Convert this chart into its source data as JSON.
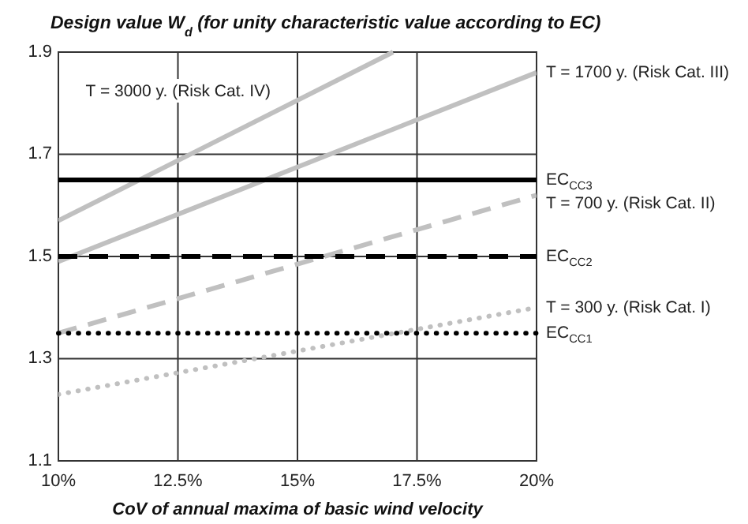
{
  "chart_data": {
    "type": "line",
    "title": "Design value W$_{d}$ (for unity characteristic value according to EC)",
    "xlabel": "CoV of annual maxima of basic wind velocity",
    "xlim": [
      10,
      20
    ],
    "xticks": [
      {
        "value": 10,
        "label": "10%"
      },
      {
        "value": 12.5,
        "label": "12.5%"
      },
      {
        "value": 15,
        "label": "15%"
      },
      {
        "value": 17.5,
        "label": "17.5%"
      },
      {
        "value": 20,
        "label": "20%"
      }
    ],
    "ylim": [
      1.1,
      1.9
    ],
    "yticks": [
      1.1,
      1.3,
      1.5,
      1.7,
      1.9
    ],
    "grid": true,
    "series": [
      {
        "name": "T = 3000 y. (Risk Cat. IV)",
        "color": "#c0c0c0",
        "line_style": "solid",
        "x": [
          10,
          17
        ],
        "values": [
          1.57,
          1.9
        ]
      },
      {
        "name": "T = 1700 y. (Risk Cat. III)",
        "color": "#c0c0c0",
        "line_style": "solid",
        "x": [
          10,
          20
        ],
        "values": [
          1.49,
          1.86
        ]
      },
      {
        "name": "T = 700 y. (Risk Cat. II)",
        "color": "#c0c0c0",
        "line_style": "dashed",
        "x": [
          10,
          20
        ],
        "values": [
          1.35,
          1.62
        ]
      },
      {
        "name": "T = 300 y. (Risk Cat. I)",
        "color": "#c0c0c0",
        "line_style": "dotted",
        "x": [
          10,
          20
        ],
        "values": [
          1.23,
          1.4
        ]
      }
    ],
    "ref_lines": [
      {
        "axis": "y",
        "value": 1.65,
        "label": "EC$_{CC3}$",
        "color": "#000000",
        "line_style": "solid"
      },
      {
        "axis": "y",
        "value": 1.5,
        "label": "EC$_{CC2}$",
        "color": "#000000",
        "line_style": "dashed"
      },
      {
        "axis": "y",
        "value": 1.35,
        "label": "EC$_{CC1}$",
        "color": "#000000",
        "line_style": "dotted"
      }
    ]
  }
}
